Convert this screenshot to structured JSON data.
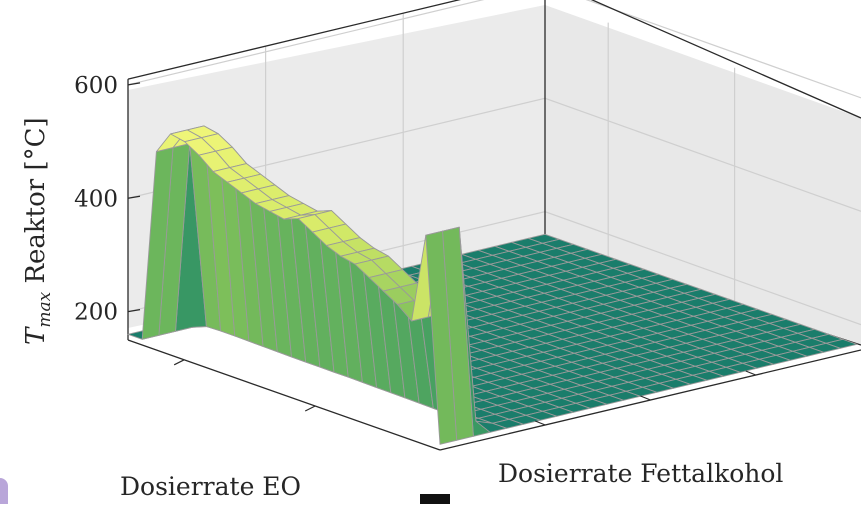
{
  "chart_data": {
    "type": "surface",
    "title": "",
    "xlabel": "Dosierrate EO",
    "ylabel": "Dosierrate Fettalkohol",
    "zlabel_main": "T",
    "zlabel_sub": "max",
    "zlabel_rest": " Reaktor [°C]",
    "zticks": [
      "200",
      "400",
      "600"
    ],
    "zlim": [
      150,
      600
    ],
    "grid": true,
    "colormap": [
      "#1a7d6b",
      "#3b9a63",
      "#7dbf5a",
      "#d6ea68",
      "#f2f77a"
    ],
    "n_eo_grid": 23,
    "n_fett_grid": 26,
    "baseline_temperature": 160,
    "ridge_temperature_by_eo_step": [
      170,
      180,
      500,
      540,
      535,
      520,
      500,
      490,
      480,
      470,
      465,
      460,
      470,
      455,
      440,
      430,
      425,
      410,
      395,
      380,
      360,
      520,
      170
    ],
    "ridge_width_fett_steps": 2
  }
}
